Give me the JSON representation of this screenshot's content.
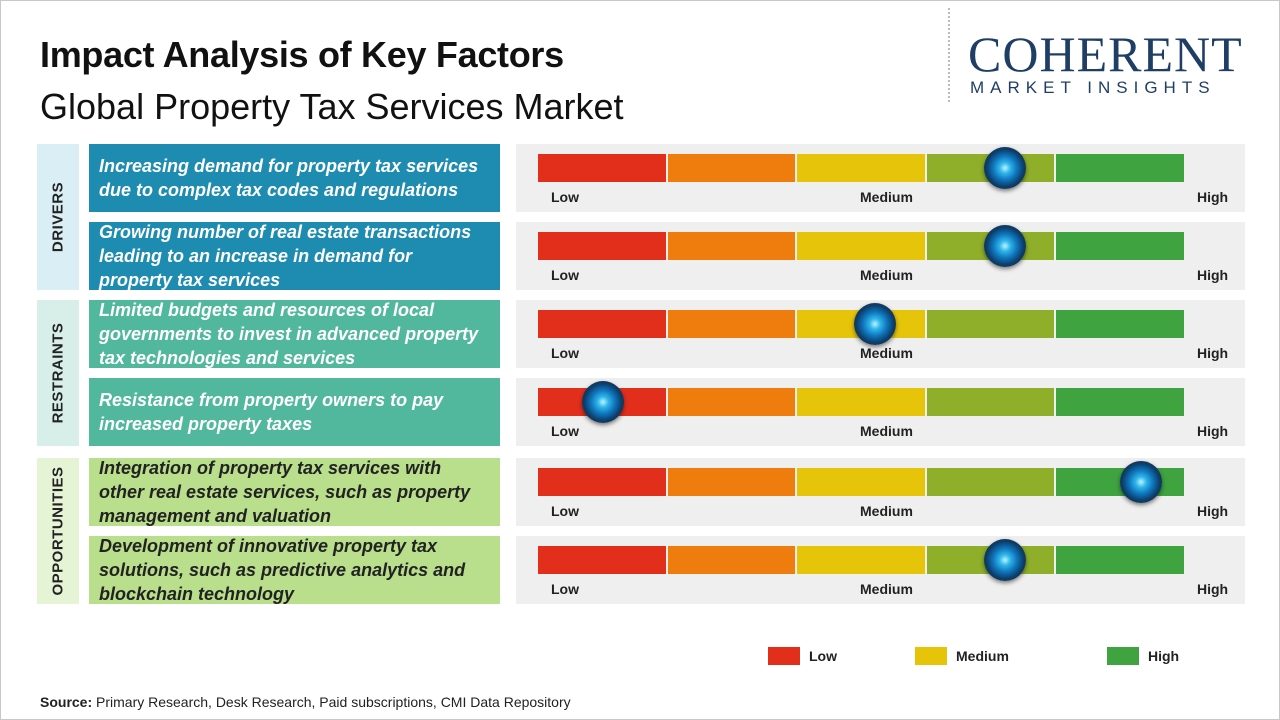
{
  "title": "Impact Analysis of Key Factors",
  "subtitle": "Global Property Tax Services Market",
  "logo": {
    "name": "COHERENT",
    "tagline": "MARKET INSIGHTS"
  },
  "scale_labels": [
    "Low",
    "Medium",
    "High"
  ],
  "colors": {
    "red": "#e22f1c",
    "orange": "#ef7d0d",
    "yellow": "#e6c40a",
    "olive": "#8faf2a",
    "green": "#3fa33f",
    "drivers": "#1e8bb0",
    "drivers_label_bg": "#d9eef5",
    "restraints": "#52b89d",
    "restraints_label_bg": "#d7efe8",
    "opportunities": "#b9df8c",
    "opportunities_label_bg": "#e6f4d6"
  },
  "chart_data": {
    "type": "gauge",
    "scale": [
      "Low",
      "Medium",
      "High"
    ],
    "groups": [
      {
        "category": "DRIVERS",
        "factors": [
          {
            "text": "Increasing demand for property tax services due to complex tax codes and regulations",
            "impact": 0.72
          },
          {
            "text": "Growing number of real estate transactions leading to an increase in demand for property tax services",
            "impact": 0.72
          }
        ]
      },
      {
        "category": "RESTRAINTS",
        "factors": [
          {
            "text": "Limited budgets and resources of local governments to invest in advanced property tax technologies and services",
            "impact": 0.52
          },
          {
            "text": "Resistance from property owners to pay increased property taxes",
            "impact": 0.1
          }
        ]
      },
      {
        "category": "OPPORTUNITIES",
        "factors": [
          {
            "text": "Integration of property tax services with other real estate services, such as property management and valuation",
            "impact": 0.93
          },
          {
            "text": "Development of innovative property tax solutions, such as predictive analytics and blockchain technology",
            "impact": 0.72
          }
        ]
      }
    ],
    "legend": [
      {
        "label": "Low",
        "color": "#e22f1c"
      },
      {
        "label": "Medium",
        "color": "#e6c40a"
      },
      {
        "label": "High",
        "color": "#3fa33f"
      }
    ]
  },
  "source": {
    "label": "Source:",
    "text": "Primary Research, Desk Research, Paid subscriptions, CMI Data Repository"
  }
}
